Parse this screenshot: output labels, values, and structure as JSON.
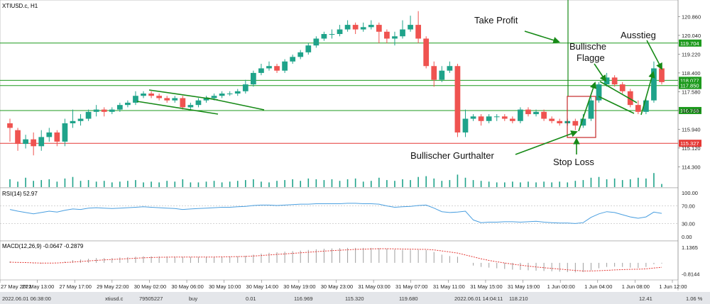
{
  "chart_data": {
    "type": "candlestick",
    "symbol_label": "XTIUSD.c, H1",
    "price_ylim": [
      113.6,
      121.4
    ],
    "price_ticks": [
      "120.860",
      "120.040",
      "119.220",
      "118.400",
      "117.580",
      "116.760",
      "115.940",
      "115.120",
      "114.300"
    ],
    "level_lines": [
      {
        "value": 119.704,
        "label": "119.704",
        "color": "#1d9a1d"
      },
      {
        "value": 118.077,
        "label": "118.077",
        "color": "#1d9a1d"
      },
      {
        "value": 117.85,
        "label": "117.850",
        "color": "#1d9a1d"
      },
      {
        "value": 116.758,
        "label": "116.758",
        "color": "#1d9a1d"
      },
      {
        "value": 115.327,
        "label": "115.327",
        "color": "#e53935"
      }
    ],
    "candles": [
      [
        116.2,
        116.0,
        116.4,
        115.4
      ],
      [
        115.9,
        115.3,
        116.0,
        115.0
      ],
      [
        115.3,
        115.5,
        115.7,
        115.1
      ],
      [
        115.5,
        115.2,
        115.8,
        114.8
      ],
      [
        115.2,
        115.6,
        115.9,
        115.0
      ],
      [
        115.6,
        115.8,
        116.0,
        115.4
      ],
      [
        115.8,
        115.4,
        115.9,
        115.2
      ],
      [
        115.4,
        116.2,
        116.4,
        115.2
      ],
      [
        116.2,
        116.3,
        116.8,
        116.0
      ],
      [
        116.3,
        116.4,
        116.6,
        116.1
      ],
      [
        116.4,
        116.7,
        116.8,
        116.3
      ],
      [
        116.7,
        116.8,
        117.0,
        116.5
      ],
      [
        116.8,
        116.7,
        116.9,
        116.5
      ],
      [
        116.7,
        116.8,
        116.9,
        116.6
      ],
      [
        116.8,
        117.0,
        117.1,
        116.7
      ],
      [
        117.0,
        117.1,
        117.2,
        116.9
      ],
      [
        117.1,
        117.4,
        117.6,
        117.0
      ],
      [
        117.4,
        117.5,
        117.6,
        117.3
      ],
      [
        117.5,
        117.4,
        117.6,
        117.3
      ],
      [
        117.4,
        117.3,
        117.5,
        117.2
      ],
      [
        117.3,
        117.2,
        117.4,
        117.1
      ],
      [
        117.2,
        117.3,
        117.4,
        117.1
      ],
      [
        117.3,
        116.9,
        117.4,
        116.8
      ],
      [
        116.9,
        117.0,
        117.1,
        116.8
      ],
      [
        117.0,
        117.2,
        117.3,
        116.9
      ],
      [
        117.2,
        117.3,
        117.4,
        117.1
      ],
      [
        117.3,
        117.4,
        117.5,
        117.2
      ],
      [
        117.4,
        117.5,
        117.6,
        117.3
      ],
      [
        117.5,
        117.5,
        117.6,
        117.4
      ],
      [
        117.5,
        117.6,
        117.7,
        117.4
      ],
      [
        117.6,
        117.9,
        118.1,
        117.5
      ],
      [
        117.9,
        118.4,
        118.5,
        117.8
      ],
      [
        118.4,
        118.6,
        118.8,
        118.3
      ],
      [
        118.6,
        118.7,
        118.9,
        118.5
      ],
      [
        118.7,
        118.5,
        118.8,
        118.4
      ],
      [
        118.5,
        118.9,
        119.0,
        118.4
      ],
      [
        118.9,
        119.1,
        119.2,
        118.8
      ],
      [
        119.1,
        119.3,
        119.4,
        119.0
      ],
      [
        119.3,
        119.6,
        119.7,
        119.2
      ],
      [
        119.6,
        119.9,
        120.0,
        119.5
      ],
      [
        119.9,
        120.1,
        120.2,
        119.8
      ],
      [
        120.1,
        120.1,
        120.3,
        119.9
      ],
      [
        120.1,
        120.3,
        120.5,
        120.0
      ],
      [
        120.3,
        120.5,
        120.7,
        120.2
      ],
      [
        120.5,
        120.3,
        120.6,
        120.1
      ],
      [
        120.3,
        120.4,
        120.6,
        120.2
      ],
      [
        120.4,
        120.5,
        120.7,
        120.3
      ],
      [
        120.5,
        120.2,
        120.6,
        119.7
      ],
      [
        120.2,
        119.9,
        120.3,
        119.7
      ],
      [
        119.9,
        120.0,
        120.2,
        119.6
      ],
      [
        120.0,
        120.3,
        120.7,
        119.9
      ],
      [
        120.3,
        120.5,
        120.9,
        120.2
      ],
      [
        120.5,
        119.9,
        121.1,
        119.7
      ],
      [
        119.9,
        118.7,
        120.0,
        118.6
      ],
      [
        118.7,
        118.1,
        118.9,
        117.8
      ],
      [
        118.1,
        118.5,
        118.7,
        118.0
      ],
      [
        118.5,
        118.7,
        118.9,
        118.4
      ],
      [
        118.7,
        115.8,
        118.8,
        115.6
      ],
      [
        115.8,
        116.4,
        116.8,
        115.6
      ],
      [
        116.4,
        116.5,
        116.6,
        116.3
      ],
      [
        116.5,
        116.3,
        116.6,
        116.1
      ],
      [
        116.3,
        116.5,
        116.6,
        116.2
      ],
      [
        116.5,
        116.5,
        116.6,
        116.3
      ],
      [
        116.5,
        116.4,
        116.6,
        116.3
      ],
      [
        116.4,
        116.3,
        116.5,
        116.2
      ],
      [
        116.3,
        116.8,
        116.9,
        116.2
      ],
      [
        116.8,
        116.6,
        116.9,
        116.5
      ],
      [
        116.6,
        116.7,
        116.8,
        116.5
      ],
      [
        116.7,
        116.4,
        116.8,
        116.3
      ],
      [
        116.4,
        116.3,
        116.5,
        116.2
      ],
      [
        116.3,
        116.2,
        116.4,
        116.1
      ],
      [
        116.2,
        116.3,
        116.4,
        116.1
      ],
      [
        116.3,
        116.1,
        116.4,
        115.9
      ],
      [
        116.1,
        116.4,
        116.6,
        116.0
      ],
      [
        116.4,
        117.2,
        117.4,
        116.3
      ],
      [
        117.2,
        117.9,
        118.0,
        117.1
      ],
      [
        117.9,
        118.2,
        118.4,
        117.8
      ],
      [
        118.2,
        117.9,
        118.3,
        117.8
      ],
      [
        117.9,
        117.6,
        118.0,
        117.5
      ],
      [
        117.6,
        117.0,
        117.7,
        116.9
      ],
      [
        117.0,
        116.7,
        117.2,
        116.6
      ],
      [
        116.7,
        117.2,
        117.3,
        116.6
      ],
      [
        117.2,
        118.6,
        118.9,
        117.1
      ],
      [
        118.6,
        118.0,
        118.7,
        117.9
      ]
    ],
    "volumes": [
      0.5,
      0.35,
      0.6,
      0.4,
      0.45,
      0.5,
      0.35,
      0.55,
      0.65,
      0.4,
      0.45,
      0.35,
      0.4,
      0.3,
      0.35,
      0.4,
      0.45,
      0.3,
      0.35,
      0.3,
      0.4,
      0.35,
      0.5,
      0.3,
      0.3,
      0.35,
      0.4,
      0.3,
      0.35,
      0.4,
      0.45,
      0.5,
      0.35,
      0.3,
      0.4,
      0.45,
      0.5,
      0.4,
      0.55,
      0.5,
      0.45,
      0.5,
      0.4,
      0.5,
      0.55,
      0.35,
      0.4,
      0.6,
      0.45,
      0.4,
      0.5,
      0.45,
      0.65,
      0.7,
      0.55,
      0.4,
      0.45,
      0.8,
      0.6,
      0.45,
      0.4,
      0.35,
      0.3,
      0.3,
      0.35,
      0.3,
      0.35,
      0.3,
      0.35,
      0.3,
      0.35,
      0.3,
      0.4,
      0.45,
      0.6,
      0.65,
      0.5,
      0.55,
      0.45,
      0.5,
      0.6,
      0.55,
      0.9,
      0.2
    ],
    "rsi": {
      "label": "RSI(14) 52.97",
      "ticks": [
        "100.00",
        "70.00",
        "30.00",
        "0.00"
      ],
      "values": [
        62,
        58,
        55,
        52,
        55,
        58,
        56,
        60,
        63,
        62,
        65,
        66,
        65,
        64,
        65,
        66,
        67,
        68,
        67,
        66,
        65,
        64,
        62,
        63,
        64,
        65,
        66,
        67,
        67,
        68,
        69,
        71,
        72,
        72,
        71,
        72,
        73,
        74,
        74,
        75,
        75,
        75,
        75,
        76,
        76,
        75,
        75,
        74,
        70,
        67,
        68,
        69,
        71,
        72,
        65,
        57,
        55,
        56,
        58,
        38,
        32,
        33,
        33,
        34,
        34,
        33,
        34,
        35,
        33,
        32,
        31,
        31,
        30,
        32,
        44,
        52,
        57,
        55,
        50,
        45,
        42,
        45,
        56,
        53
      ]
    },
    "macd": {
      "label": "MACD(12,26,9) -0.0647 -0.2879",
      "ticks": [
        "1.1365",
        "-0.8144"
      ],
      "ylim": [
        -1.1,
        1.3
      ],
      "hist": [
        0.1,
        0.05,
        0.0,
        -0.05,
        -0.05,
        0.0,
        0.0,
        0.1,
        0.2,
        0.25,
        0.3,
        0.35,
        0.35,
        0.35,
        0.4,
        0.42,
        0.45,
        0.48,
        0.48,
        0.48,
        0.47,
        0.46,
        0.44,
        0.43,
        0.43,
        0.44,
        0.45,
        0.46,
        0.47,
        0.48,
        0.52,
        0.6,
        0.68,
        0.74,
        0.78,
        0.82,
        0.86,
        0.9,
        0.95,
        1.0,
        1.04,
        1.06,
        1.08,
        1.1,
        1.1,
        1.1,
        1.1,
        1.08,
        1.04,
        0.98,
        0.96,
        0.95,
        0.96,
        0.94,
        0.8,
        0.6,
        0.5,
        0.45,
        0.0,
        -0.2,
        -0.3,
        -0.35,
        -0.4,
        -0.45,
        -0.5,
        -0.52,
        -0.55,
        -0.58,
        -0.6,
        -0.62,
        -0.65,
        -0.68,
        -0.7,
        -0.68,
        -0.55,
        -0.4,
        -0.3,
        -0.28,
        -0.3,
        -0.35,
        -0.38,
        -0.3,
        -0.1,
        -0.05
      ],
      "signal": [
        0.05,
        0.03,
        0.02,
        0.0,
        -0.02,
        -0.02,
        -0.01,
        0.02,
        0.06,
        0.1,
        0.14,
        0.18,
        0.22,
        0.25,
        0.28,
        0.31,
        0.34,
        0.37,
        0.39,
        0.41,
        0.42,
        0.43,
        0.43,
        0.43,
        0.43,
        0.43,
        0.43,
        0.44,
        0.45,
        0.46,
        0.47,
        0.5,
        0.54,
        0.58,
        0.62,
        0.66,
        0.7,
        0.74,
        0.78,
        0.82,
        0.86,
        0.9,
        0.93,
        0.96,
        0.99,
        1.01,
        1.03,
        1.04,
        1.04,
        1.03,
        1.02,
        1.01,
        1.0,
        0.99,
        0.95,
        0.88,
        0.8,
        0.72,
        0.58,
        0.44,
        0.3,
        0.18,
        0.08,
        -0.01,
        -0.1,
        -0.17,
        -0.24,
        -0.3,
        -0.36,
        -0.41,
        -0.46,
        -0.51,
        -0.56,
        -0.6,
        -0.6,
        -0.58,
        -0.55,
        -0.52,
        -0.5,
        -0.48,
        -0.47,
        -0.44,
        -0.38,
        -0.33
      ]
    },
    "x_ticks": [
      "27 May 2022",
      "27 May 13:00",
      "27 May 17:00",
      "29 May 22:00",
      "30 May 02:00",
      "30 May 06:00",
      "30 May 10:00",
      "30 May 14:00",
      "30 May 19:00",
      "30 May 23:00",
      "31 May 03:00",
      "31 May 07:00",
      "31 May 11:00",
      "31 May 15:00",
      "31 May 19:00",
      "1 Jun 00:00",
      "1 Jun 04:00",
      "1 Jun 08:00",
      "1 Jun 12:00"
    ],
    "annotations": {
      "take_profit": "Take Profit",
      "flag": [
        "Bullische",
        "Flagge"
      ],
      "exit": "Ausstieg",
      "hammer": "Bullischer Gurthalter",
      "stop_loss": "Stop Loss"
    },
    "status_bar": [
      "2022.06.01 06:38:00",
      "xtiusd.c",
      "79505227",
      "buy",
      "0.01",
      "116.969",
      "115.320",
      "119.680",
      "2022.06.01 14:04:11",
      "118.210",
      "12.41",
      "1.06 %"
    ],
    "colors": {
      "up": "#1fa38a",
      "down": "#ef5350",
      "level": "#1d9a1d",
      "stop": "#e53935",
      "rsi": "#4a9fe0",
      "macd": "#e53935",
      "annotation": "#178a17"
    }
  }
}
